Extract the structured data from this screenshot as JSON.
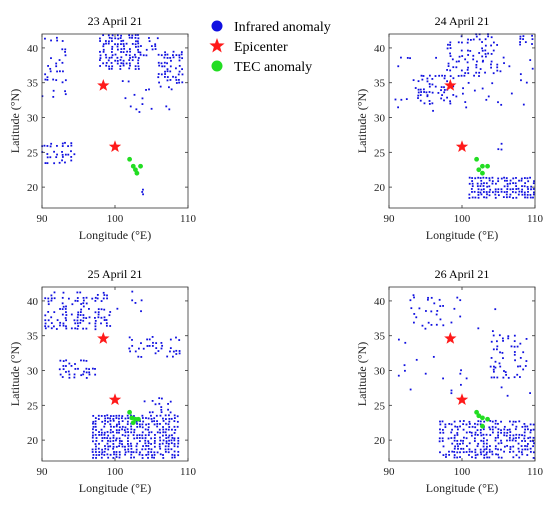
{
  "chart_data": {
    "type": "scatter",
    "legend": {
      "placement": "top-center",
      "entries": [
        {
          "label": "Infrared anomaly",
          "color": "#1010e0",
          "marker": "circle"
        },
        {
          "label": "Epicenter",
          "color": "#ff1a1a",
          "marker": "star"
        },
        {
          "label": "TEC anomaly",
          "color": "#22dd22",
          "marker": "circle"
        }
      ]
    },
    "shared": {
      "xlabel": "Longitude (°E)",
      "ylabel": "Latitude (°N)",
      "xlim": [
        90,
        110
      ],
      "ylim": [
        17,
        42
      ],
      "xticks": [
        90,
        100,
        110
      ],
      "yticks": [
        20,
        25,
        30,
        35,
        40
      ],
      "grid": false,
      "epicenters": [
        {
          "x": 98.4,
          "y": 34.6
        },
        {
          "x": 100.0,
          "y": 25.8
        }
      ]
    },
    "panels": [
      {
        "title": "23 April 21",
        "tec": [
          [
            102,
            24
          ],
          [
            102.5,
            23
          ],
          [
            103,
            22
          ],
          [
            103.5,
            23
          ],
          [
            102.8,
            22.5
          ]
        ],
        "infrared_regions": [
          {
            "x": [
              90,
              93.5
            ],
            "y": [
              33,
              42
            ],
            "density": 0.16
          },
          {
            "x": [
              98,
              103.5
            ],
            "y": [
              37,
              42
            ],
            "density": 0.62
          },
          {
            "x": [
              103.5,
              106
            ],
            "y": [
              39,
              41.5
            ],
            "density": 0.2
          },
          {
            "x": [
              106,
              109.5
            ],
            "y": [
              35,
              39.5
            ],
            "density": 0.4
          },
          {
            "x": [
              101,
              108
            ],
            "y": [
              30,
              36
            ],
            "density": 0.05
          },
          {
            "x": [
              90,
              94.5
            ],
            "y": [
              23.5,
              26.5
            ],
            "density": 0.35
          },
          {
            "x": [
              103.8,
              104.6
            ],
            "y": [
              18.5,
              20
            ],
            "density": 0.45
          }
        ]
      },
      {
        "title": "24 April 21",
        "tec": [
          [
            102,
            24
          ],
          [
            102.8,
            23
          ],
          [
            103.5,
            23
          ],
          [
            102.8,
            22
          ],
          [
            102.3,
            22.5
          ]
        ],
        "infrared_regions": [
          {
            "x": [
              94,
              99
            ],
            "y": [
              32,
              36
            ],
            "density": 0.4
          },
          {
            "x": [
              98,
              105
            ],
            "y": [
              36,
              42
            ],
            "density": 0.3
          },
          {
            "x": [
              90.5,
              110
            ],
            "y": [
              31,
              39
            ],
            "density": 0.05
          },
          {
            "x": [
              108,
              110
            ],
            "y": [
              40.5,
              42
            ],
            "density": 0.55
          },
          {
            "x": [
              101,
              110
            ],
            "y": [
              18.5,
              21.5
            ],
            "density": 0.75
          },
          {
            "x": [
              105,
              106.5
            ],
            "y": [
              25,
              26.5
            ],
            "density": 0.25
          }
        ]
      },
      {
        "title": "25 April 21",
        "tec": [
          [
            102,
            24
          ],
          [
            102.8,
            23
          ],
          [
            103.2,
            23
          ],
          [
            102.5,
            22.5
          ],
          [
            102.3,
            23.2
          ]
        ],
        "infrared_regions": [
          {
            "x": [
              90.5,
              99.5
            ],
            "y": [
              36,
              41.5
            ],
            "density": 0.33
          },
          {
            "x": [
              92.5,
              97.5
            ],
            "y": [
              29,
              31.5
            ],
            "density": 0.35
          },
          {
            "x": [
              102,
              109
            ],
            "y": [
              32,
              35
            ],
            "density": 0.32
          },
          {
            "x": [
              97,
              109
            ],
            "y": [
              17.5,
              23.5
            ],
            "density": 0.7
          },
          {
            "x": [
              104,
              108
            ],
            "y": [
              24,
              26
            ],
            "density": 0.3
          },
          {
            "x": [
              100,
              104
            ],
            "y": [
              38.5,
              41.5
            ],
            "density": 0.1
          }
        ]
      },
      {
        "title": "26 April 21",
        "tec": [
          [
            102,
            24
          ],
          [
            102.8,
            23.2
          ],
          [
            103.5,
            23
          ],
          [
            102.8,
            22
          ],
          [
            102.3,
            23.5
          ]
        ],
        "infrared_regions": [
          {
            "x": [
              93,
              100
            ],
            "y": [
              36.5,
              41
            ],
            "density": 0.12
          },
          {
            "x": [
              104,
              109
            ],
            "y": [
              29,
              35
            ],
            "density": 0.2
          },
          {
            "x": [
              97,
              110
            ],
            "y": [
              17.5,
              23
            ],
            "density": 0.55
          },
          {
            "x": [
              91,
              110
            ],
            "y": [
              26,
              39
            ],
            "density": 0.02
          }
        ]
      }
    ]
  }
}
